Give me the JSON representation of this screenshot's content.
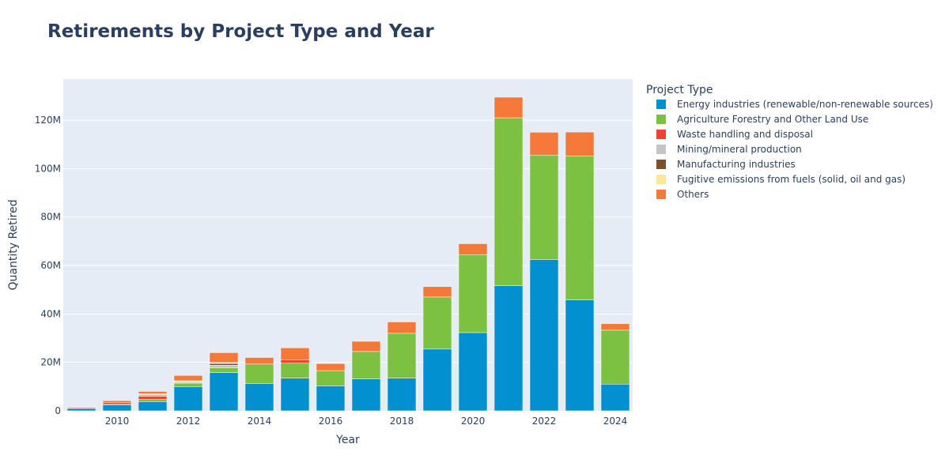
{
  "chart_data": {
    "type": "bar",
    "stacked": true,
    "title": "Retirements by Project Type and Year",
    "xlabel": "Year",
    "ylabel": "Quantity Retired",
    "x": [
      2009,
      2010,
      2011,
      2012,
      2013,
      2014,
      2015,
      2016,
      2017,
      2018,
      2019,
      2020,
      2021,
      2022,
      2023,
      2024
    ],
    "x_tick_labels": [
      "2010",
      "2012",
      "2014",
      "2016",
      "2018",
      "2020",
      "2022",
      "2024"
    ],
    "x_tick_values": [
      2010,
      2012,
      2014,
      2016,
      2018,
      2020,
      2022,
      2024
    ],
    "ylim": [
      0,
      137000000
    ],
    "y_tick_values": [
      0,
      20000000,
      40000000,
      60000000,
      80000000,
      100000000,
      120000000
    ],
    "y_tick_labels": [
      "0",
      "20M",
      "40M",
      "60M",
      "80M",
      "100M",
      "120M"
    ],
    "legend_title": "Project Type",
    "legend_position": "right",
    "plot_background": "#e5ecf6",
    "grid": true,
    "series": [
      {
        "name": "Energy industries (renewable/non-renewable sources)",
        "color": "#0290d0",
        "values": [
          1000000,
          2500000,
          3800000,
          10000000,
          15800000,
          11300000,
          13500000,
          10300000,
          13200000,
          13500000,
          25500000,
          32300000,
          51700000,
          62500000,
          45800000,
          11000000
        ]
      },
      {
        "name": "Agriculture Forestry and Other Land Use",
        "color": "#7cc142",
        "values": [
          0,
          200000,
          1000000,
          1400000,
          2000000,
          8000000,
          6200000,
          6300000,
          11300000,
          18500000,
          21500000,
          32200000,
          69300000,
          43100000,
          59400000,
          22300000
        ]
      },
      {
        "name": "Waste handling and disposal",
        "color": "#ee4035",
        "values": [
          300000,
          700000,
          1200000,
          0,
          0,
          0,
          1300000,
          0,
          0,
          0,
          0,
          0,
          0,
          0,
          0,
          0
        ]
      },
      {
        "name": "Mining/mineral production",
        "color": "#c4c4c4",
        "values": [
          0,
          0,
          300000,
          500000,
          1000000,
          0,
          0,
          0,
          0,
          0,
          0,
          0,
          0,
          0,
          0,
          0
        ]
      },
      {
        "name": "Manufacturing industries",
        "color": "#7f4f2c",
        "values": [
          100000,
          0,
          300000,
          0,
          700000,
          0,
          0,
          0,
          0,
          0,
          0,
          0,
          0,
          0,
          0,
          0
        ]
      },
      {
        "name": "Fugitive emissions from fuels (solid, oil and gas)",
        "color": "#fbe896",
        "values": [
          0,
          0,
          400000,
          500000,
          500000,
          0,
          0,
          0,
          0,
          0,
          0,
          0,
          0,
          0,
          0,
          0
        ]
      },
      {
        "name": "Others",
        "color": "#f47938",
        "values": [
          300000,
          800000,
          1000000,
          2200000,
          4000000,
          2700000,
          5000000,
          2900000,
          4200000,
          4700000,
          4300000,
          4500000,
          8500000,
          9400000,
          9900000,
          2700000
        ]
      }
    ]
  }
}
